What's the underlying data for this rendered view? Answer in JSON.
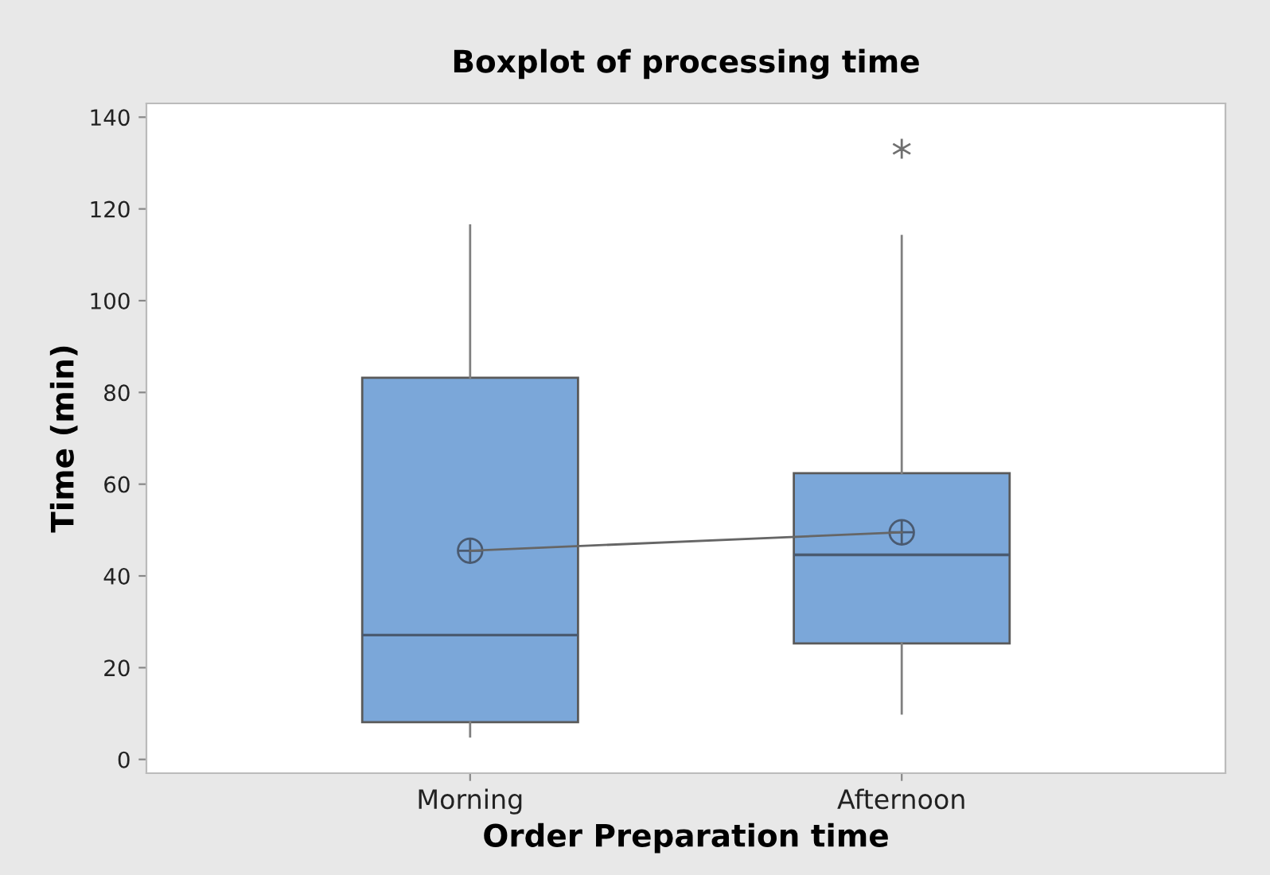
{
  "chart_data": {
    "type": "box",
    "title": "Boxplot of processing time",
    "xlabel": "Order Preparation time",
    "ylabel": "Time (min)",
    "categories": [
      "Morning",
      "Afternoon"
    ],
    "ylim": [
      -3,
      143
    ],
    "yticks": [
      0,
      20,
      40,
      60,
      80,
      100,
      120,
      140
    ],
    "grid": false,
    "legend": false,
    "series": [
      {
        "color": "#7ba7d9",
        "boxes": [
          {
            "low": 5,
            "q1": 8.1,
            "median": 27.1,
            "q3": 83.2,
            "high": 116.4,
            "mean": 45.5
          },
          {
            "low": 10,
            "q1": 25.3,
            "median": 44.6,
            "q3": 62.4,
            "high": 114.1,
            "mean": 49.5,
            "outliers": [
              133.1
            ]
          }
        ]
      },
      {
        "type": "line",
        "color": "#666666",
        "x": [
          "Morning",
          "Afternoon"
        ],
        "values": [
          45.5,
          49.5
        ],
        "marker": "none",
        "line_style": "solid"
      }
    ]
  }
}
